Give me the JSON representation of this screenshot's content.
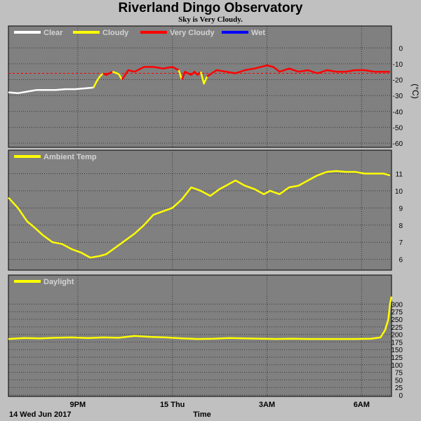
{
  "title": "Riverland Dingo Observatory",
  "subtitle": "Sky is Very Cloudy.",
  "x_start_label": "14 Wed Jun 2017",
  "x_axis_title": "Time",
  "colors": {
    "panel_bg": "#808080",
    "page_bg": "#c0c0c0",
    "clear": "#ffffff",
    "cloudy": "#ffff00",
    "very_cloudy": "#ff0000",
    "wet": "#0000ff",
    "ambient": "#ffff00",
    "daylight": "#ffff00",
    "threshold": "#ff0000"
  },
  "chart_data": [
    {
      "type": "line",
      "title": "Riverland Dingo Observatory",
      "subtitle": "Sky is Very Cloudy.",
      "unit": "(°C)",
      "ylim": [
        -60,
        5
      ],
      "ytick_values": [
        0,
        -10,
        -20,
        -30,
        -40,
        -50,
        -60
      ],
      "xticks": [
        {
          "x": 2.2,
          "label": "9PM"
        },
        {
          "x": 5.2,
          "label": "15 Thu"
        },
        {
          "x": 8.2,
          "label": "3AM"
        },
        {
          "x": 11.2,
          "label": "6AM"
        }
      ],
      "xlim": [
        0,
        12.15
      ],
      "grid": true,
      "legend": [
        {
          "name": "Clear",
          "color": "#ffffff"
        },
        {
          "name": "Cloudy",
          "color": "#ffff00"
        },
        {
          "name": "Very Cloudy",
          "color": "#ff0000"
        },
        {
          "name": "Wet",
          "color": "#0000ff"
        }
      ],
      "threshold": -16,
      "series": [
        {
          "name": "Clear",
          "color": "#ffffff",
          "x": [
            0,
            0.3,
            0.6,
            0.9,
            1.2,
            1.5,
            1.8,
            2.1,
            2.4,
            2.7
          ],
          "y": [
            -28,
            -28.5,
            -27.5,
            -26.5,
            -26.5,
            -26.5,
            -26,
            -26,
            -25.5,
            -25
          ]
        },
        {
          "name": "Cloudy",
          "color": "#ffff00",
          "x": [
            2.7,
            2.8,
            2.9,
            3.0
          ],
          "y": [
            -25,
            -21,
            -18,
            -16
          ]
        },
        {
          "name": "Very Cloudy",
          "color": "#ff0000",
          "x": [
            3.0,
            3.1,
            3.3
          ],
          "y": [
            -16,
            -17,
            -15
          ]
        },
        {
          "name": "Cloudy",
          "color": "#ffff00",
          "x": [
            3.3,
            3.5,
            3.6
          ],
          "y": [
            -15,
            -16.5,
            -20
          ]
        },
        {
          "name": "Very Cloudy",
          "color": "#ff0000",
          "x": [
            3.6,
            3.8,
            4.0,
            4.3,
            4.6,
            4.9,
            5.2,
            5.4
          ],
          "y": [
            -20,
            -14,
            -15,
            -12,
            -12,
            -13,
            -12,
            -14
          ]
        },
        {
          "name": "Cloudy",
          "color": "#ffff00",
          "x": [
            5.4,
            5.5
          ],
          "y": [
            -14,
            -20
          ]
        },
        {
          "name": "Very Cloudy",
          "color": "#ff0000",
          "x": [
            5.5,
            5.6,
            5.8,
            5.9,
            6.0,
            6.1
          ],
          "y": [
            -20,
            -15,
            -17,
            -15,
            -17,
            -15
          ]
        },
        {
          "name": "Cloudy",
          "color": "#ffff00",
          "x": [
            6.1,
            6.2,
            6.3
          ],
          "y": [
            -15,
            -22.5,
            -18
          ]
        },
        {
          "name": "Very Cloudy",
          "color": "#ff0000",
          "x": [
            6.3,
            6.6,
            6.9,
            7.2,
            7.5,
            7.8,
            8.0,
            8.2,
            8.4,
            8.6,
            8.9,
            9.2,
            9.5,
            9.8,
            10.1,
            10.4,
            10.7,
            11.0,
            11.3,
            11.6,
            11.9,
            12.1
          ],
          "y": [
            -18,
            -14,
            -15,
            -16,
            -14,
            -13,
            -12,
            -11,
            -12,
            -15,
            -13,
            -15,
            -14,
            -16,
            -14,
            -15,
            -15,
            -14,
            -14,
            -15,
            -15,
            -15
          ]
        }
      ]
    },
    {
      "type": "line",
      "ylim": [
        5.7,
        11.55
      ],
      "ytick_values": [
        6,
        7,
        8,
        9,
        10,
        11
      ],
      "xlim": [
        0,
        12.15
      ],
      "grid": true,
      "legend": [
        {
          "name": "Ambient Temp",
          "color": "#ffff00"
        }
      ],
      "series": [
        {
          "name": "Ambient Temp",
          "color": "#ffff00",
          "x": [
            0,
            0.3,
            0.6,
            0.8,
            1.1,
            1.4,
            1.7,
            2.0,
            2.3,
            2.6,
            2.9,
            3.1,
            3.4,
            3.7,
            4.0,
            4.3,
            4.6,
            4.9,
            5.2,
            5.5,
            5.8,
            6.1,
            6.4,
            6.7,
            6.9,
            7.2,
            7.5,
            7.8,
            8.1,
            8.3,
            8.6,
            8.9,
            9.2,
            9.5,
            9.8,
            10.1,
            10.4,
            10.7,
            11.0,
            11.3,
            11.6,
            11.9,
            12.1
          ],
          "y": [
            9.6,
            9.0,
            8.2,
            7.9,
            7.4,
            7.0,
            6.9,
            6.6,
            6.4,
            6.1,
            6.2,
            6.3,
            6.7,
            7.1,
            7.5,
            8.0,
            8.6,
            8.8,
            9.0,
            9.5,
            10.2,
            10.0,
            9.7,
            10.1,
            10.3,
            10.6,
            10.3,
            10.1,
            9.8,
            10.0,
            9.8,
            10.2,
            10.3,
            10.6,
            10.9,
            11.1,
            11.15,
            11.1,
            11.1,
            11.0,
            11.0,
            11.0,
            10.9
          ]
        }
      ]
    },
    {
      "type": "line",
      "ylim": [
        0,
        345
      ],
      "ytick_values": [
        0,
        25,
        50,
        75,
        100,
        125,
        150,
        175,
        200,
        225,
        250,
        275,
        300
      ],
      "xlim": [
        0,
        12.15
      ],
      "grid": true,
      "legend": [
        {
          "name": "Daylight",
          "color": "#ffff00"
        }
      ],
      "series": [
        {
          "name": "Daylight",
          "color": "#ffff00",
          "x": [
            0,
            0.5,
            1.0,
            1.5,
            2.0,
            2.5,
            3.0,
            3.5,
            4.0,
            4.5,
            5.0,
            5.5,
            6.0,
            6.5,
            7.0,
            7.5,
            8.0,
            8.5,
            9.0,
            9.5,
            10.0,
            10.5,
            11.0,
            11.5,
            11.8,
            11.95,
            12.05,
            12.1,
            12.15
          ],
          "y": [
            185,
            188,
            187,
            189,
            190,
            188,
            190,
            189,
            195,
            192,
            190,
            187,
            185,
            186,
            188,
            187,
            186,
            185,
            186,
            185,
            185,
            185,
            185,
            186,
            190,
            215,
            250,
            300,
            325
          ]
        }
      ]
    }
  ]
}
